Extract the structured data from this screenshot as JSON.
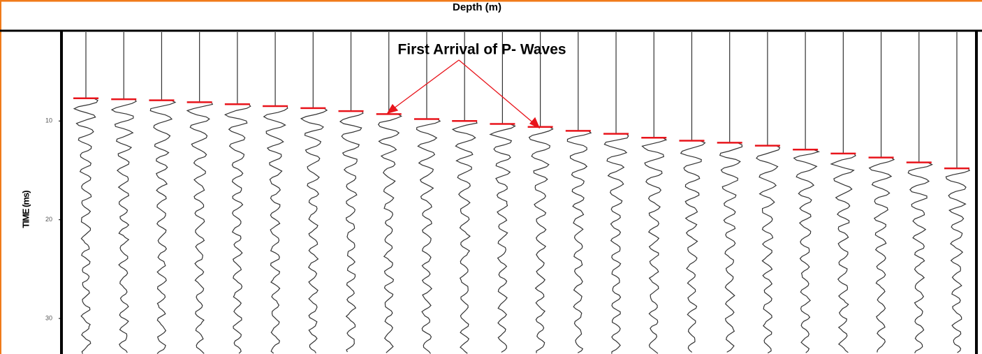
{
  "chart_data": {
    "type": "seismogram",
    "title": "Depth (m)",
    "y_label": "TIME (ms)",
    "annotation": "First Arrival of P- Waves",
    "categories": [
      null,
      null,
      null,
      null,
      null,
      null,
      null,
      null,
      null,
      null,
      null,
      null,
      null,
      null,
      null,
      null,
      null,
      null,
      null,
      null,
      null,
      null,
      null,
      null
    ],
    "values": [
      7.7,
      7.8,
      7.9,
      8.1,
      8.3,
      8.5,
      8.7,
      9.0,
      9.3,
      9.8,
      10.0,
      10.3,
      10.6,
      11.0,
      11.3,
      11.7,
      12.0,
      12.2,
      12.5,
      12.9,
      13.3,
      13.7,
      14.2,
      14.8
    ],
    "color": "#e8141b",
    "ylim": [
      1,
      33.6
    ],
    "yticks": [
      10,
      20,
      30
    ]
  }
}
